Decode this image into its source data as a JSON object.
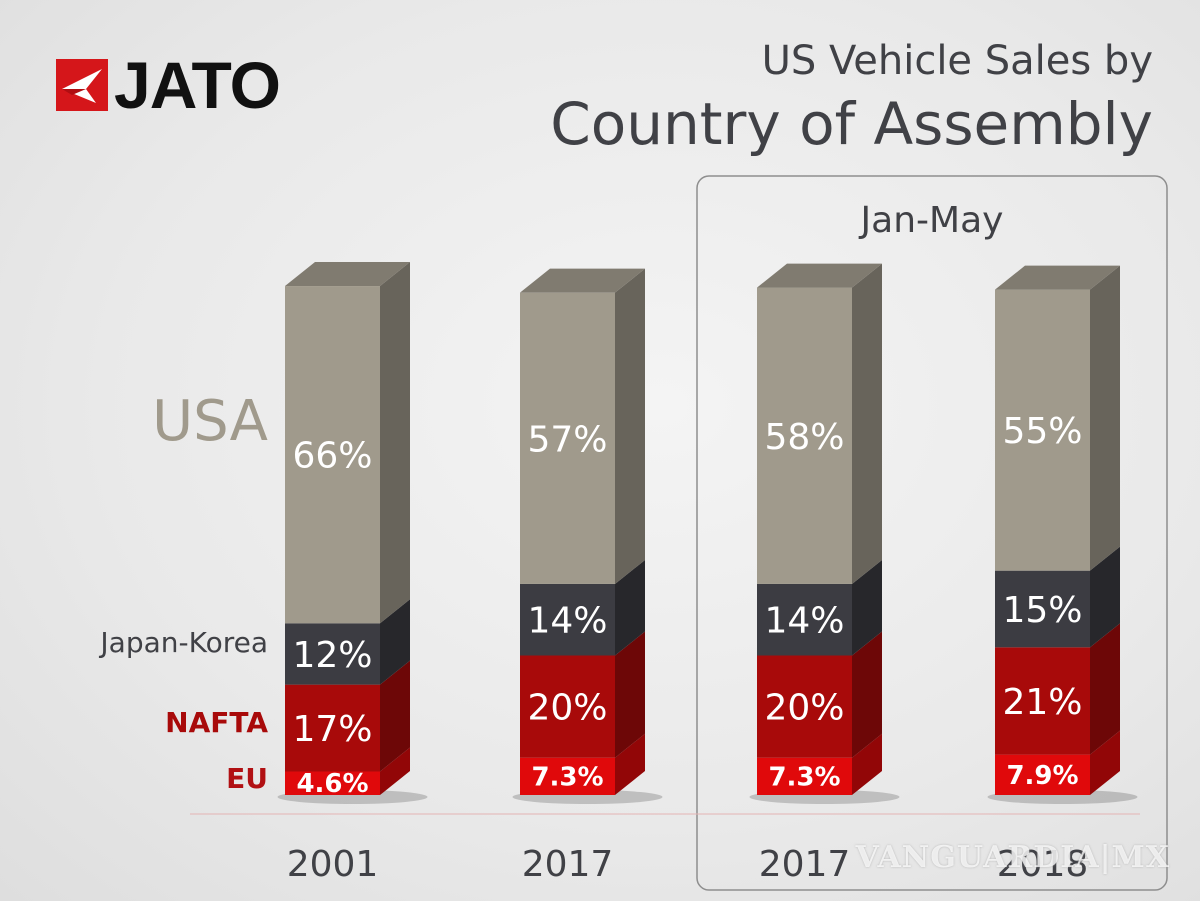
{
  "brand": {
    "logo_text": "JATO"
  },
  "watermark": {
    "text": "VANGUARDIA|MX"
  },
  "colors": {
    "usa": "#a09a8c",
    "japan_korea": "#3c3c42",
    "nafta": "#a80a0a",
    "eu": "#e0090b",
    "usa_label": "#a09a8c",
    "japan_korea_label": "#404146",
    "nafta_label": "#a80a0a",
    "eu_label": "#b11013"
  },
  "chart_data": {
    "type": "bar",
    "stacked": true,
    "title": "US Vehicle Sales by",
    "subtitle": "Country of Assembly",
    "categories": [
      "2001",
      "2017",
      "2017",
      "2018"
    ],
    "group_label": "Jan-May",
    "group_categories": [
      2,
      3
    ],
    "series": [
      {
        "name": "EU",
        "values": [
          4.6,
          7.3,
          7.3,
          7.9
        ],
        "labels": [
          "4.6%",
          "7.3%",
          "7.3%",
          "7.9%"
        ]
      },
      {
        "name": "NAFTA",
        "values": [
          17,
          20,
          20,
          21
        ],
        "labels": [
          "17%",
          "20%",
          "20%",
          "21%"
        ]
      },
      {
        "name": "Japan-Korea",
        "values": [
          12,
          14,
          14,
          15
        ],
        "labels": [
          "12%",
          "14%",
          "14%",
          "15%"
        ]
      },
      {
        "name": "USA",
        "values": [
          66,
          57,
          58,
          55
        ],
        "labels": [
          "66%",
          "57%",
          "58%",
          "55%"
        ]
      }
    ],
    "ylim": [
      0,
      100
    ]
  }
}
